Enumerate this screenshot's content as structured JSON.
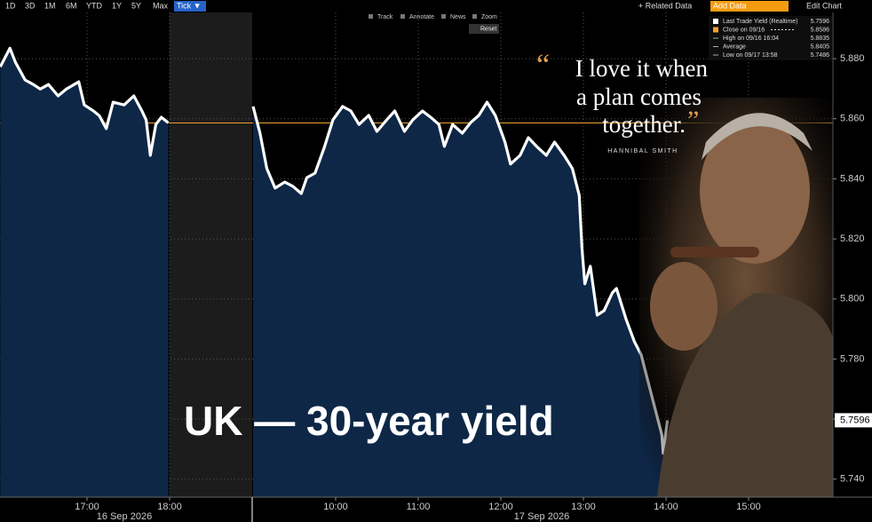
{
  "toolbar": {
    "ranges": [
      "1D",
      "3D",
      "1M",
      "6M",
      "YTD",
      "1Y",
      "5Y",
      "Max"
    ],
    "active": "Tick ▼",
    "related": "+ Related Data",
    "add_data": "Add Data",
    "edit": "Edit Chart",
    "tools": [
      "Track",
      "Annotate",
      "News",
      "Zoom"
    ],
    "reset": "Reset"
  },
  "overlay": {
    "open_quote": "“",
    "close_quote": "”",
    "quote_lines": [
      "I love it when",
      "a plan comes",
      "together."
    ],
    "attribution": "HANNIBAL SMITH"
  },
  "chart_data": {
    "type": "line",
    "title": "UK — 30-year yield",
    "x": [
      "2026-09-16 15:57",
      "2026-09-16 16:04",
      "2026-09-16 16:08",
      "2026-09-16 16:15",
      "2026-09-16 16:21",
      "2026-09-16 16:26",
      "2026-09-16 16:32",
      "2026-09-16 16:39",
      "2026-09-16 16:45",
      "2026-09-16 16:54",
      "2026-09-16 16:58",
      "2026-09-16 17:05",
      "2026-09-16 17:09",
      "2026-09-16 17:14",
      "2026-09-16 17:19",
      "2026-09-16 17:27",
      "2026-09-16 17:34",
      "2026-09-16 17:40",
      "2026-09-16 17:43",
      "2026-09-16 17:46",
      "2026-09-16 17:50",
      "2026-09-16 17:54",
      "2026-09-16 17:59",
      null,
      "2026-09-17 09:00",
      "2026-09-17 09:05",
      "2026-09-17 09:10",
      "2026-09-17 09:16",
      "2026-09-17 09:23",
      "2026-09-17 09:29",
      "2026-09-17 09:35",
      "2026-09-17 09:39",
      "2026-09-17 09:45",
      "2026-09-17 09:52",
      "2026-09-17 09:58",
      "2026-09-17 10:05",
      "2026-09-17 10:11",
      "2026-09-17 10:17",
      "2026-09-17 10:24",
      "2026-09-17 10:30",
      "2026-09-17 10:37",
      "2026-09-17 10:43",
      "2026-09-17 10:50",
      "2026-09-17 10:56",
      "2026-09-17 11:03",
      "2026-09-17 11:09",
      "2026-09-17 11:15",
      "2026-09-17 11:19",
      "2026-09-17 11:25",
      "2026-09-17 11:32",
      "2026-09-17 11:38",
      "2026-09-17 11:44",
      "2026-09-17 11:50",
      "2026-09-17 11:56",
      "2026-09-17 12:03",
      "2026-09-17 12:07",
      "2026-09-17 12:14",
      "2026-09-17 12:20",
      "2026-09-17 12:26",
      "2026-09-17 12:33",
      "2026-09-17 12:39",
      "2026-09-17 12:46",
      "2026-09-17 12:52",
      "2026-09-17 12:57",
      "2026-09-17 12:59",
      "2026-09-17 13:01",
      "2026-09-17 13:05",
      "2026-09-17 13:10",
      "2026-09-17 13:15",
      "2026-09-17 13:21",
      "2026-09-17 13:24",
      "2026-09-17 13:31",
      "2026-09-17 13:37",
      "2026-09-17 13:42",
      "2026-09-17 13:47",
      "2026-09-17 13:52",
      "2026-09-17 13:57",
      "2026-09-17 13:58",
      "2026-09-17 14:01"
    ],
    "series": [
      {
        "name": "Last Trade Yield (Realtime)",
        "color": "#ffffff",
        "values": [
          5.8773,
          5.8835,
          5.8788,
          5.8729,
          5.8714,
          5.8699,
          5.8714,
          5.8676,
          5.8699,
          5.8723,
          5.8646,
          5.8625,
          5.861,
          5.8567,
          5.8655,
          5.8646,
          5.8676,
          5.8625,
          5.8596,
          5.8478,
          5.8581,
          5.8605,
          5.8587,
          null,
          5.8641,
          5.8552,
          5.8434,
          5.8369,
          5.8389,
          5.8375,
          5.8351,
          5.8404,
          5.8419,
          5.8508,
          5.8596,
          5.8641,
          5.8626,
          5.8581,
          5.8611,
          5.8558,
          5.8596,
          5.8626,
          5.8558,
          5.8596,
          5.8626,
          5.8605,
          5.8581,
          5.8508,
          5.8581,
          5.8552,
          5.8587,
          5.8611,
          5.8655,
          5.8611,
          5.8522,
          5.8449,
          5.8478,
          5.8537,
          5.8508,
          5.8478,
          5.8522,
          5.8478,
          5.8434,
          5.8345,
          5.8168,
          5.805,
          5.8109,
          5.7946,
          5.7961,
          5.802,
          5.8035,
          5.7932,
          5.7858,
          5.7814,
          5.7725,
          5.7636,
          5.7548,
          5.7486,
          5.7596
        ]
      }
    ],
    "area_color": "#0e2747",
    "stats": [
      {
        "label": "Last Trade Yield (Realtime)",
        "value": 5.7596,
        "color": "#ffffff"
      },
      {
        "label": "Close on 09/16",
        "value": 5.8586,
        "color": "#f0a030"
      },
      {
        "label": "High on 09/16 16:04",
        "value": 5.8835
      },
      {
        "label": "Average",
        "value": 5.8405
      },
      {
        "label": "Low on 09/17 13:58",
        "value": 5.7486
      }
    ],
    "ylim": [
      5.734,
      5.8954
    ],
    "yticks": [
      {
        "value": 5.74,
        "label": "5.740"
      },
      {
        "value": 5.76,
        "label": "5.760"
      },
      {
        "value": 5.78,
        "label": "5.780"
      },
      {
        "value": 5.8,
        "label": "5.800"
      },
      {
        "value": 5.82,
        "label": "5.820"
      },
      {
        "value": 5.84,
        "label": "5.840"
      },
      {
        "value": 5.86,
        "label": "5.860"
      },
      {
        "value": 5.88,
        "label": "5.880"
      }
    ],
    "xticks": [
      {
        "value": "2026-09-16 17:00",
        "label": "17:00"
      },
      {
        "value": "2026-09-16 18:00",
        "label": "18:00"
      },
      {
        "value": "2026-09-17 10:00",
        "label": "10:00"
      },
      {
        "value": "2026-09-17 11:00",
        "label": "11:00"
      },
      {
        "value": "2026-09-17 12:00",
        "label": "12:00"
      },
      {
        "value": "2026-09-17 13:00",
        "label": "13:00"
      },
      {
        "value": "2026-09-17 14:00",
        "label": "14:00"
      },
      {
        "value": "2026-09-17 15:00",
        "label": "15:00"
      }
    ],
    "date_labels": [
      "16 Sep 2026",
      "17 Sep 2026"
    ],
    "grid": true
  }
}
